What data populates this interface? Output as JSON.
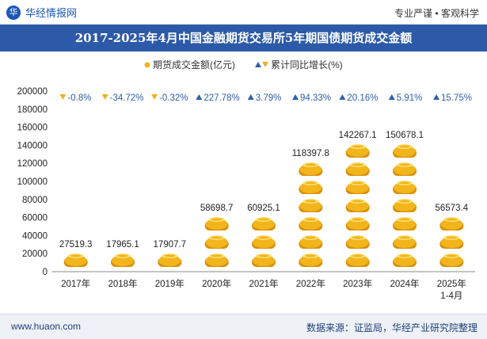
{
  "header": {
    "brand": "华经情报网",
    "logo_glyph": "华",
    "tagline": "专业严谨 • 客观科学"
  },
  "footer": {
    "website": "www.huaon.com",
    "source": "数据来源：证监局，华经产业研究院整理"
  },
  "colors": {
    "title_bg": "#2c5aa8",
    "coin_fill": "#f2b51c",
    "coin_shadow": "#d78f0a",
    "coin_highlight": "#fbe27a",
    "pct_color": "#2e5fa8",
    "down_marker": "#f0b020",
    "up_marker": "#2e5fa8"
  },
  "chart_data": {
    "type": "bar",
    "title": "2017-2025年4月中国金融期货交易所5年期国债期货成交金额",
    "categories": [
      "2017年",
      "2018年",
      "2019年",
      "2020年",
      "2021年",
      "2022年",
      "2023年",
      "2024年",
      "2025年\n1-4月"
    ],
    "series": [
      {
        "name": "期货成交金额(亿元)",
        "values": [
          27519.3,
          17965.1,
          17907.7,
          58698.7,
          60925.1,
          118397.8,
          142267.1,
          150678.1,
          56573.4
        ],
        "value_labels": [
          "27519.3",
          "17965.1",
          "17907.7",
          "58698.7",
          "60925.1",
          "118397.8",
          "142267.1",
          "150678.1",
          "56573.4"
        ]
      },
      {
        "name": "累计同比增长(%)",
        "values": [
          -0.8,
          -34.72,
          -0.32,
          227.78,
          3.79,
          94.33,
          20.16,
          5.91,
          15.75
        ],
        "value_labels": [
          "-0.8%",
          "-34.72%",
          "-0.32%",
          "227.78%",
          "3.79%",
          "94.33%",
          "20.16%",
          "5.91%",
          "15.75%"
        ]
      }
    ],
    "ylim": [
      0,
      200000
    ],
    "yticks": [
      "0",
      "20000",
      "40000",
      "60000",
      "80000",
      "100000",
      "120000",
      "140000",
      "160000",
      "180000",
      "200000"
    ],
    "xlabel": "",
    "ylabel": "",
    "legend_position": "top-center",
    "grid": false
  }
}
